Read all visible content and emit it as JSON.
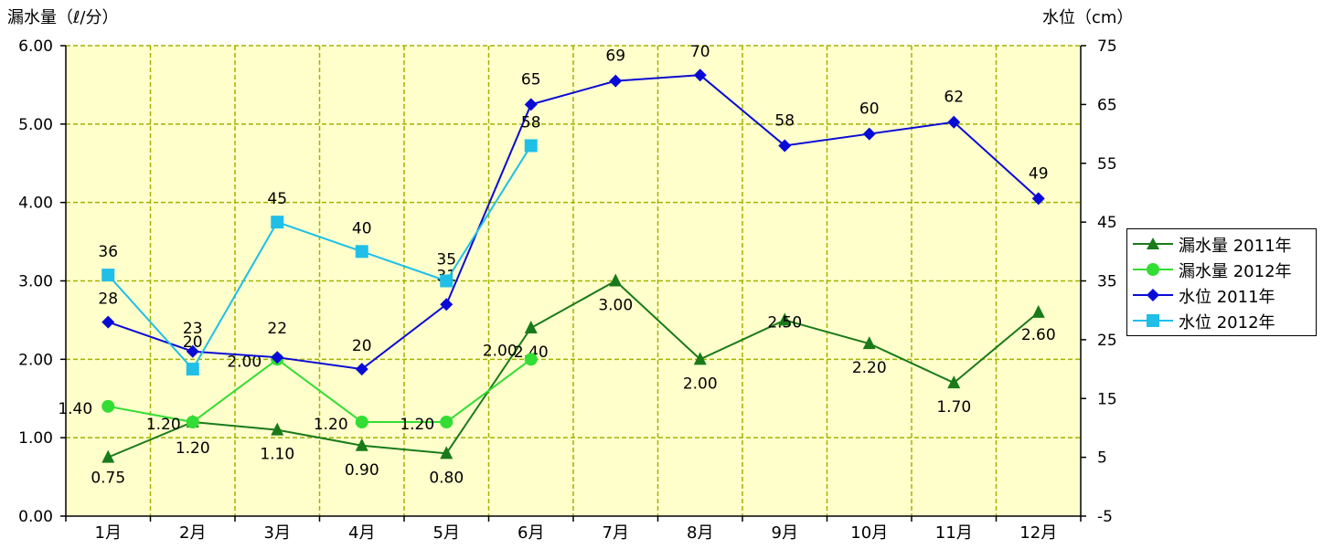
{
  "chart_data": {
    "type": "line",
    "ylabel_left": "漏水量（ℓ/分）",
    "ylabel_right": "水位（cm）",
    "categories": [
      "1月",
      "2月",
      "3月",
      "4月",
      "5月",
      "6月",
      "7月",
      "8月",
      "9月",
      "10月",
      "11月",
      "12月"
    ],
    "ylim_left": [
      0,
      6
    ],
    "yticks_left": [
      "0.00",
      "1.00",
      "2.00",
      "3.00",
      "4.00",
      "5.00",
      "6.00"
    ],
    "ylim_right": [
      -5,
      75
    ],
    "yticks_right": [
      "-5",
      "5",
      "15",
      "25",
      "35",
      "45",
      "55",
      "65",
      "75"
    ],
    "grid": true,
    "legend_position": "right",
    "series": [
      {
        "name": "漏水量 2011年",
        "axis": "left",
        "marker": "triangle",
        "color": "#1a7a1a",
        "values": [
          0.75,
          1.2,
          1.1,
          0.9,
          0.8,
          2.4,
          3.0,
          2.0,
          2.5,
          2.2,
          1.7,
          2.6
        ],
        "labels": [
          "0.75",
          "1.20",
          "1.10",
          "0.90",
          "0.80",
          "2.40",
          "3.00",
          "2.00",
          "2.50",
          "2.20",
          "1.70",
          "2.60"
        ]
      },
      {
        "name": "漏水量 2012年",
        "axis": "left",
        "marker": "circle",
        "color": "#33dd33",
        "values": [
          1.4,
          1.2,
          2.0,
          1.2,
          1.2,
          2.0,
          null,
          null,
          null,
          null,
          null,
          null
        ],
        "labels": [
          "1.40",
          "1.20",
          "2.00",
          "1.20",
          "1.20",
          "2.00",
          null,
          null,
          null,
          null,
          null,
          null
        ]
      },
      {
        "name": "水位 2011年",
        "axis": "right",
        "marker": "diamond",
        "color": "#0a0ad6",
        "values": [
          28,
          23,
          22,
          20,
          31,
          65,
          69,
          70,
          58,
          60,
          62,
          49
        ],
        "labels": [
          "28",
          "23",
          "22",
          "20",
          "31",
          "65",
          "69",
          "70",
          "58",
          "60",
          "62",
          "49"
        ]
      },
      {
        "name": "水位 2012年",
        "axis": "right",
        "marker": "square",
        "color": "#1fbfe8",
        "values": [
          36,
          20,
          45,
          40,
          35,
          58,
          null,
          null,
          null,
          null,
          null,
          null
        ],
        "labels": [
          "36",
          "20",
          "45",
          "40",
          "35",
          "58",
          null,
          null,
          null,
          null,
          null,
          null
        ]
      }
    ]
  },
  "colors": {
    "plot_background": "#ffffcc",
    "grid": "#a0b400"
  }
}
